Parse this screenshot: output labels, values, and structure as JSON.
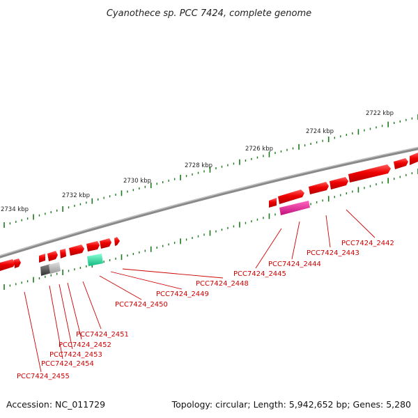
{
  "title": "Cyanothece sp. PCC 7424, complete genome",
  "footer": {
    "accession": "Accession: NC_011729",
    "topology": "Topology: circular; Length: 5,942,652 bp; Genes: 5,280"
  },
  "kbp_labels": [
    "2722 kbp",
    "2724 kbp",
    "2726 kbp",
    "2728 kbp",
    "2730 kbp",
    "2732 kbp",
    "2734 kbp"
  ],
  "gene_labels": [
    "PCC7424_2442",
    "PCC7424_2443",
    "PCC7424_2444",
    "PCC7424_2445",
    "PCC7424_2448",
    "PCC7424_2449",
    "PCC7424_2450",
    "PCC7424_2451",
    "PCC7424_2452",
    "PCC7424_2453",
    "PCC7424_2454",
    "PCC7424_2455"
  ],
  "colors": {
    "gene_red": "#ee0000",
    "gene_magenta": "#e6168c",
    "gene_teal": "#21e6a0",
    "gene_gray_dark": "#555555",
    "gene_gray_light": "#bbbbbb",
    "tick_green": "#1a7a1a",
    "label_red": "#cc0000",
    "backbone": "#8a8a8a"
  }
}
